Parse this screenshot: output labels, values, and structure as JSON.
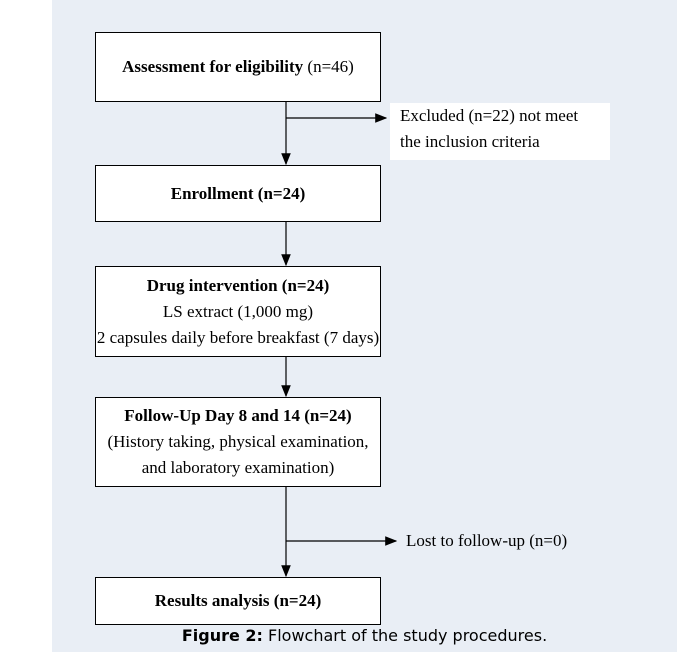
{
  "nodes": [
    {
      "title": "Assessment for eligibility",
      "count": "(n=46)"
    },
    {
      "lines": [
        "Excluded (n=22) not meet",
        "the inclusion criteria"
      ]
    },
    {
      "title": "Enrollment",
      "count": "(n=24)"
    },
    {
      "title": "Drug intervention",
      "count": "(n=24)",
      "lines": [
        "LS extract (1,000 mg)",
        "2 capsules daily before breakfast (7 days)"
      ]
    },
    {
      "title": "Follow-Up Day 8 and 14",
      "count": "(n=24)",
      "lines": [
        "(History taking, physical examination,",
        "and laboratory examination)"
      ]
    },
    {
      "lines": [
        "Lost to follow-up (n=0)"
      ]
    },
    {
      "title": "Results analysis",
      "count": "(n=24)"
    }
  ],
  "caption": {
    "label": "Figure 2:",
    "text": "Flowchart of the study procedures."
  }
}
